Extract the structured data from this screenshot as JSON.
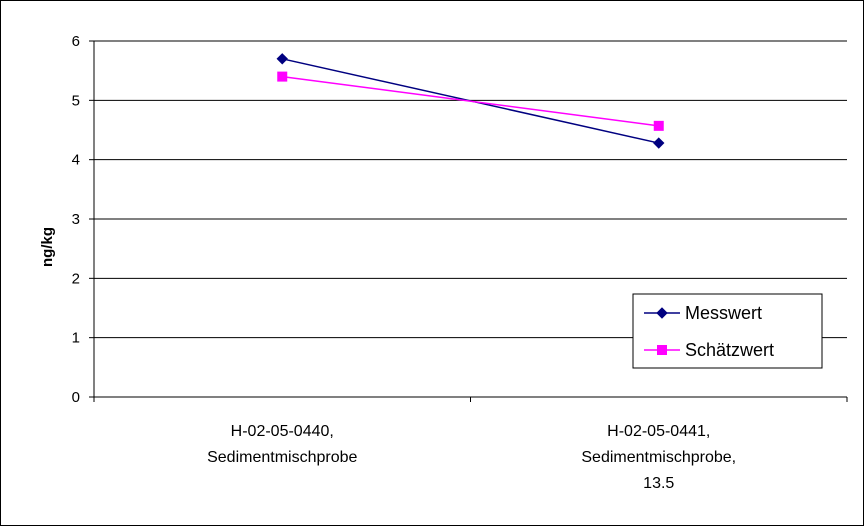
{
  "chart_data": {
    "type": "line",
    "title": "",
    "xlabel": "",
    "ylabel": "ng/kg",
    "ylim": [
      0,
      6
    ],
    "yticks": [
      0,
      1,
      2,
      3,
      4,
      5,
      6
    ],
    "grid": true,
    "legend_position": "bottom-right",
    "categories": [
      [
        "H-02-05-0440,",
        "Sedimentmischprobe"
      ],
      [
        "H-02-05-0441,",
        "Sedimentmischprobe,",
        "13.5"
      ]
    ],
    "series": [
      {
        "name": "Messwert",
        "values": [
          5.7,
          4.28
        ],
        "color": "#000080",
        "marker": "diamond"
      },
      {
        "name": "Schätzwert",
        "values": [
          5.4,
          4.57
        ],
        "color": "#FF00FF",
        "marker": "square"
      }
    ]
  }
}
